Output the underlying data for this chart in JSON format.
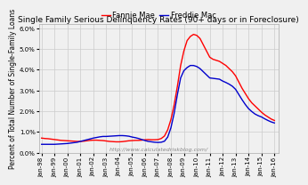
{
  "title": "Single Family Serious Delinquency Rates (90+ days or in Foreclosure)",
  "ylabel": "Percent of Total Number of Single-Family Loans",
  "watermark": "http://www.calculatedriskblog.com/",
  "legend_fannie": "Fannie Mae",
  "legend_freddie": "Freddie Mac",
  "fannie_color": "#ff0000",
  "freddie_color": "#0000cc",
  "background_color": "#f0f0f0",
  "grid_color": "#cccccc",
  "ylim": [
    0.0,
    0.062
  ],
  "yticks": [
    0.0,
    0.01,
    0.02,
    0.03,
    0.04,
    0.05,
    0.06
  ],
  "fannie_x": [
    1998.0,
    1998.25,
    1998.5,
    1998.75,
    1999.0,
    1999.25,
    1999.5,
    1999.75,
    2000.0,
    2000.25,
    2000.5,
    2000.75,
    2001.0,
    2001.25,
    2001.5,
    2001.75,
    2002.0,
    2002.25,
    2002.5,
    2002.75,
    2003.0,
    2003.25,
    2003.5,
    2003.75,
    2004.0,
    2004.25,
    2004.5,
    2004.75,
    2005.0,
    2005.25,
    2005.5,
    2005.75,
    2006.0,
    2006.25,
    2006.5,
    2006.75,
    2007.0,
    2007.25,
    2007.5,
    2007.75,
    2008.0,
    2008.25,
    2008.5,
    2008.75,
    2009.0,
    2009.25,
    2009.5,
    2009.75,
    2010.0,
    2010.25,
    2010.5,
    2010.75,
    2011.0,
    2011.25,
    2011.5,
    2011.75,
    2012.0,
    2012.25,
    2012.5,
    2012.75,
    2013.0,
    2013.25,
    2013.5,
    2013.75,
    2014.0,
    2014.25,
    2014.5,
    2014.75,
    2015.0,
    2015.25,
    2015.5,
    2015.75,
    2016.0
  ],
  "fannie_y": [
    0.007,
    0.0068,
    0.0067,
    0.0065,
    0.0063,
    0.0061,
    0.0059,
    0.0058,
    0.0057,
    0.0056,
    0.0055,
    0.0054,
    0.0054,
    0.0055,
    0.0057,
    0.0059,
    0.006,
    0.006,
    0.0059,
    0.0058,
    0.0056,
    0.0054,
    0.0053,
    0.0052,
    0.0052,
    0.0053,
    0.0055,
    0.0057,
    0.0058,
    0.0059,
    0.0059,
    0.006,
    0.0062,
    0.0063,
    0.0062,
    0.0062,
    0.0063,
    0.0068,
    0.008,
    0.011,
    0.016,
    0.023,
    0.032,
    0.042,
    0.049,
    0.054,
    0.056,
    0.057,
    0.0565,
    0.055,
    0.052,
    0.049,
    0.046,
    0.045,
    0.0445,
    0.044,
    0.043,
    0.042,
    0.0405,
    0.039,
    0.037,
    0.034,
    0.031,
    0.0285,
    0.026,
    0.024,
    0.0225,
    0.021,
    0.0195,
    0.0182,
    0.0172,
    0.0162,
    0.0155
  ],
  "freddie_x": [
    1998.0,
    1998.25,
    1998.5,
    1998.75,
    1999.0,
    1999.25,
    1999.5,
    1999.75,
    2000.0,
    2000.25,
    2000.5,
    2000.75,
    2001.0,
    2001.25,
    2001.5,
    2001.75,
    2002.0,
    2002.25,
    2002.5,
    2002.75,
    2003.0,
    2003.25,
    2003.5,
    2003.75,
    2004.0,
    2004.25,
    2004.5,
    2004.75,
    2005.0,
    2005.25,
    2005.5,
    2005.75,
    2006.0,
    2006.25,
    2006.5,
    2006.75,
    2007.0,
    2007.25,
    2007.5,
    2007.75,
    2008.0,
    2008.25,
    2008.5,
    2008.75,
    2009.0,
    2009.25,
    2009.5,
    2009.75,
    2010.0,
    2010.25,
    2010.5,
    2010.75,
    2011.0,
    2011.25,
    2011.5,
    2011.75,
    2012.0,
    2012.25,
    2012.5,
    2012.75,
    2013.0,
    2013.25,
    2013.5,
    2013.75,
    2014.0,
    2014.25,
    2014.5,
    2014.75,
    2015.0,
    2015.25,
    2015.5,
    2015.75,
    2016.0
  ],
  "freddie_y": [
    0.004,
    0.004,
    0.004,
    0.004,
    0.004,
    0.0041,
    0.0042,
    0.0043,
    0.0044,
    0.0046,
    0.0048,
    0.005,
    0.0054,
    0.0058,
    0.0062,
    0.0066,
    0.007,
    0.0073,
    0.0076,
    0.0078,
    0.0078,
    0.0079,
    0.008,
    0.0081,
    0.0082,
    0.0082,
    0.0081,
    0.0079,
    0.0075,
    0.0072,
    0.0068,
    0.0063,
    0.0058,
    0.0054,
    0.0052,
    0.005,
    0.0049,
    0.005,
    0.0055,
    0.0075,
    0.012,
    0.019,
    0.028,
    0.036,
    0.0395,
    0.041,
    0.042,
    0.042,
    0.0415,
    0.0405,
    0.039,
    0.0375,
    0.036,
    0.0358,
    0.0356,
    0.0354,
    0.0345,
    0.0338,
    0.033,
    0.032,
    0.0305,
    0.028,
    0.0255,
    0.0232,
    0.0212,
    0.0198,
    0.0186,
    0.0178,
    0.0172,
    0.0163,
    0.0155,
    0.0148,
    0.0143
  ],
  "xtick_years": [
    1998,
    1999,
    2000,
    2001,
    2002,
    2003,
    2004,
    2005,
    2006,
    2007,
    2008,
    2009,
    2010,
    2011,
    2012,
    2013,
    2014,
    2015,
    2016
  ],
  "xtick_labels": [
    "Jan-98",
    "Jan-99",
    "Jan-00",
    "Jan-01",
    "Jan-02",
    "Jan-03",
    "Jan-04",
    "Jan-05",
    "Jan-06",
    "Jan-07",
    "Jan-08",
    "Jan-09",
    "Jan-10",
    "Jan-11",
    "Jan-12",
    "Jan-13",
    "Jan-14",
    "Jan-15",
    "Jan-16"
  ],
  "title_fontsize": 6.5,
  "label_fontsize": 5.5,
  "tick_fontsize": 5,
  "legend_fontsize": 6,
  "watermark_fontsize": 4.5
}
